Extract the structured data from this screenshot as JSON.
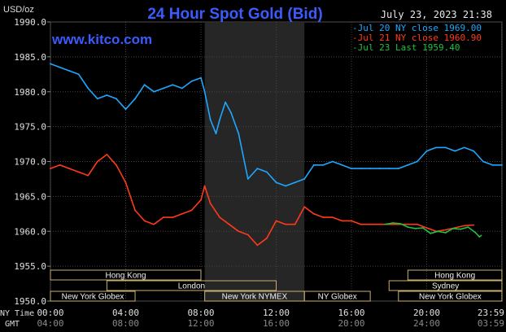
{
  "header": {
    "y_unit": "USD/oz",
    "title": "24 Hour Spot Gold (Bid)",
    "timestamp": "July 23, 2023 21:38",
    "watermark": "www.kitco.com"
  },
  "legend": [
    {
      "label": "Jul 20 NY close 1969.00",
      "color": "#1ea7ff"
    },
    {
      "label": "Jul 21 NY close 1960.90",
      "color": "#ff3a1a"
    },
    {
      "label": "Jul 23 Last 1959.40",
      "color": "#20c040"
    }
  ],
  "markets": [
    {
      "name": "Hong Kong",
      "start": 0.0,
      "end": 8.0,
      "row": 1
    },
    {
      "name": "Hong Kong",
      "start": 19.0,
      "end": 24.0,
      "row": 1
    },
    {
      "name": "London",
      "start": 3.0,
      "end": 12.0,
      "row": 2
    },
    {
      "name": "Sydney",
      "start": 18.0,
      "end": 24.0,
      "row": 2
    },
    {
      "name": "New York Globex",
      "start": 0.0,
      "end": 4.5,
      "row": 3
    },
    {
      "name": "New York NYMEX",
      "start": 8.2,
      "end": 13.5,
      "row": 3
    },
    {
      "name": "NY Globex",
      "start": 13.5,
      "end": 17.0,
      "row": 3
    },
    {
      "name": "New York Globex",
      "start": 18.5,
      "end": 24.0,
      "row": 3
    }
  ],
  "time_rows": {
    "ny_label": "NY Time",
    "gmt_label": "GMT",
    "ny_ticks": [
      "00:00",
      "04:00",
      "08:00",
      "12:00",
      "16:00",
      "20:00",
      "23:59"
    ],
    "gmt_ticks": [
      "04:00",
      "08:00",
      "12:00",
      "16:00",
      "20:00",
      "24:00",
      "03:59"
    ]
  },
  "chart_data": {
    "type": "line",
    "title": "24 Hour Spot Gold (Bid)",
    "ylabel": "USD/oz",
    "ylim": [
      1950.0,
      1990.0
    ],
    "yticks": [
      "1950.0",
      "1955.0",
      "1960.0",
      "1965.0",
      "1970.0",
      "1975.0",
      "1980.0",
      "1985.0",
      "1990.0"
    ],
    "xlim": [
      0,
      24
    ],
    "xlabel": "NY Time",
    "xticks": [
      0,
      4,
      8,
      12,
      16,
      20,
      23.98
    ],
    "highlight_band": [
      8.2,
      13.5
    ],
    "grid": true,
    "legend_position": "top-right",
    "series": [
      {
        "name": "Jul 20 NY close 1969.00",
        "color": "#1ea7ff",
        "x": [
          0,
          0.5,
          1,
          1.5,
          2,
          2.5,
          3,
          3.5,
          4,
          4.5,
          5,
          5.5,
          6,
          6.5,
          7,
          7.5,
          8,
          8.2,
          8.5,
          8.8,
          9,
          9.3,
          9.6,
          10,
          10.5,
          11,
          11.5,
          12,
          12.5,
          13,
          13.5,
          14,
          14.5,
          15,
          15.5,
          16,
          16.5,
          17,
          17.5,
          18,
          18.5,
          19,
          19.5,
          20,
          20.5,
          21,
          21.5,
          22,
          22.5,
          23,
          23.5,
          24
        ],
        "y": [
          1984,
          1983.5,
          1983,
          1982.5,
          1980.5,
          1979,
          1979.5,
          1979,
          1977.5,
          1979,
          1981,
          1980,
          1980.5,
          1981,
          1980.5,
          1981.5,
          1982,
          1980,
          1976,
          1974,
          1976,
          1978.5,
          1977,
          1974,
          1967.5,
          1969,
          1968.5,
          1967,
          1966.5,
          1967,
          1967.5,
          1969.5,
          1969.5,
          1970,
          1969.5,
          1969,
          1969,
          1969,
          1969,
          1969,
          1969,
          1969.5,
          1970,
          1971.5,
          1972,
          1972,
          1971.5,
          1972,
          1971.5,
          1970,
          1969.5,
          1969.5
        ]
      },
      {
        "name": "Jul 21 NY close 1960.90",
        "color": "#ff3a1a",
        "x": [
          0,
          0.5,
          1,
          1.5,
          2,
          2.5,
          3,
          3.5,
          4,
          4.5,
          5,
          5.5,
          6,
          6.5,
          7,
          7.5,
          8,
          8.2,
          8.5,
          9,
          9.5,
          10,
          10.5,
          11,
          11.5,
          12,
          12.5,
          13,
          13.5,
          14,
          14.5,
          15,
          15.5,
          16,
          16.5,
          17,
          17.5,
          18,
          18.5,
          19,
          19.5,
          20,
          20.5,
          21,
          21.5,
          22,
          22.5
        ],
        "y": [
          1969,
          1969.5,
          1969,
          1968.5,
          1968,
          1970,
          1971,
          1969.5,
          1967,
          1963,
          1961.5,
          1961,
          1962,
          1962,
          1962.5,
          1963,
          1964.5,
          1966.5,
          1964,
          1962,
          1961,
          1960,
          1959.5,
          1958,
          1959,
          1961.5,
          1961,
          1961,
          1963.5,
          1962.5,
          1962,
          1962,
          1961.5,
          1961.5,
          1961,
          1961,
          1961,
          1961,
          1961,
          1961,
          1961,
          1960.5,
          1960,
          1960.2,
          1960.5,
          1960.8,
          1960.9
        ]
      },
      {
        "name": "Jul 23 Last 1959.40",
        "color": "#20c040",
        "x": [
          17.8,
          18.2,
          18.6,
          19.0,
          19.4,
          19.8,
          20.2,
          20.6,
          21.0,
          21.4,
          21.8,
          22.2,
          22.6,
          22.8,
          22.9
        ],
        "y": [
          1961,
          1961.2,
          1961.1,
          1960.6,
          1960.4,
          1960.5,
          1959.7,
          1960,
          1959.8,
          1960.4,
          1960.3,
          1960.6,
          1959.8,
          1959.2,
          1959.4
        ]
      }
    ]
  }
}
